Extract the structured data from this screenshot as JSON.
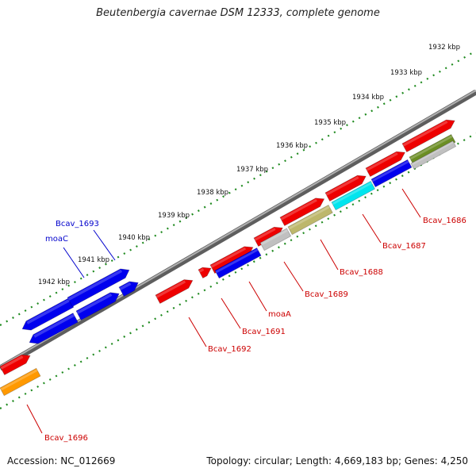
{
  "title": "Beutenbergia cavernae DSM 12333, complete genome",
  "footer": {
    "accession": "Accession: NC_012669",
    "topology": "Topology: circular; Length: 4,669,183 bp; Genes: 4,250"
  },
  "colors": {
    "backbone": "#8a8a8a",
    "ticks": "#1f8a1f",
    "red": "#ee0000",
    "blue": "#0000ee",
    "cyan": "#00e5ee",
    "khaki": "#bdb76b",
    "olive": "#6b8e23",
    "grey": "#c0c0c0",
    "orange": "#ff9900",
    "label_red": "#cc0000",
    "label_blue": "#0000cc"
  },
  "kbp_ticks": [
    "1932 kbp",
    "1933 kbp",
    "1934 kbp",
    "1935 kbp",
    "1936 kbp",
    "1937 kbp",
    "1938 kbp",
    "1939 kbp",
    "1940 kbp",
    "1941 kbp",
    "1942 kbp"
  ],
  "gene_labels": [
    {
      "text": "Bcav_1686",
      "color": "red"
    },
    {
      "text": "Bcav_1687",
      "color": "red"
    },
    {
      "text": "Bcav_1688",
      "color": "red"
    },
    {
      "text": "Bcav_1689",
      "color": "red"
    },
    {
      "text": "moaA",
      "color": "red"
    },
    {
      "text": "Bcav_1691",
      "color": "red"
    },
    {
      "text": "Bcav_1692",
      "color": "red"
    },
    {
      "text": "Bcav_1693",
      "color": "blue"
    },
    {
      "text": "moaC",
      "color": "blue"
    },
    {
      "text": "Bcav_1696",
      "color": "red"
    }
  ]
}
